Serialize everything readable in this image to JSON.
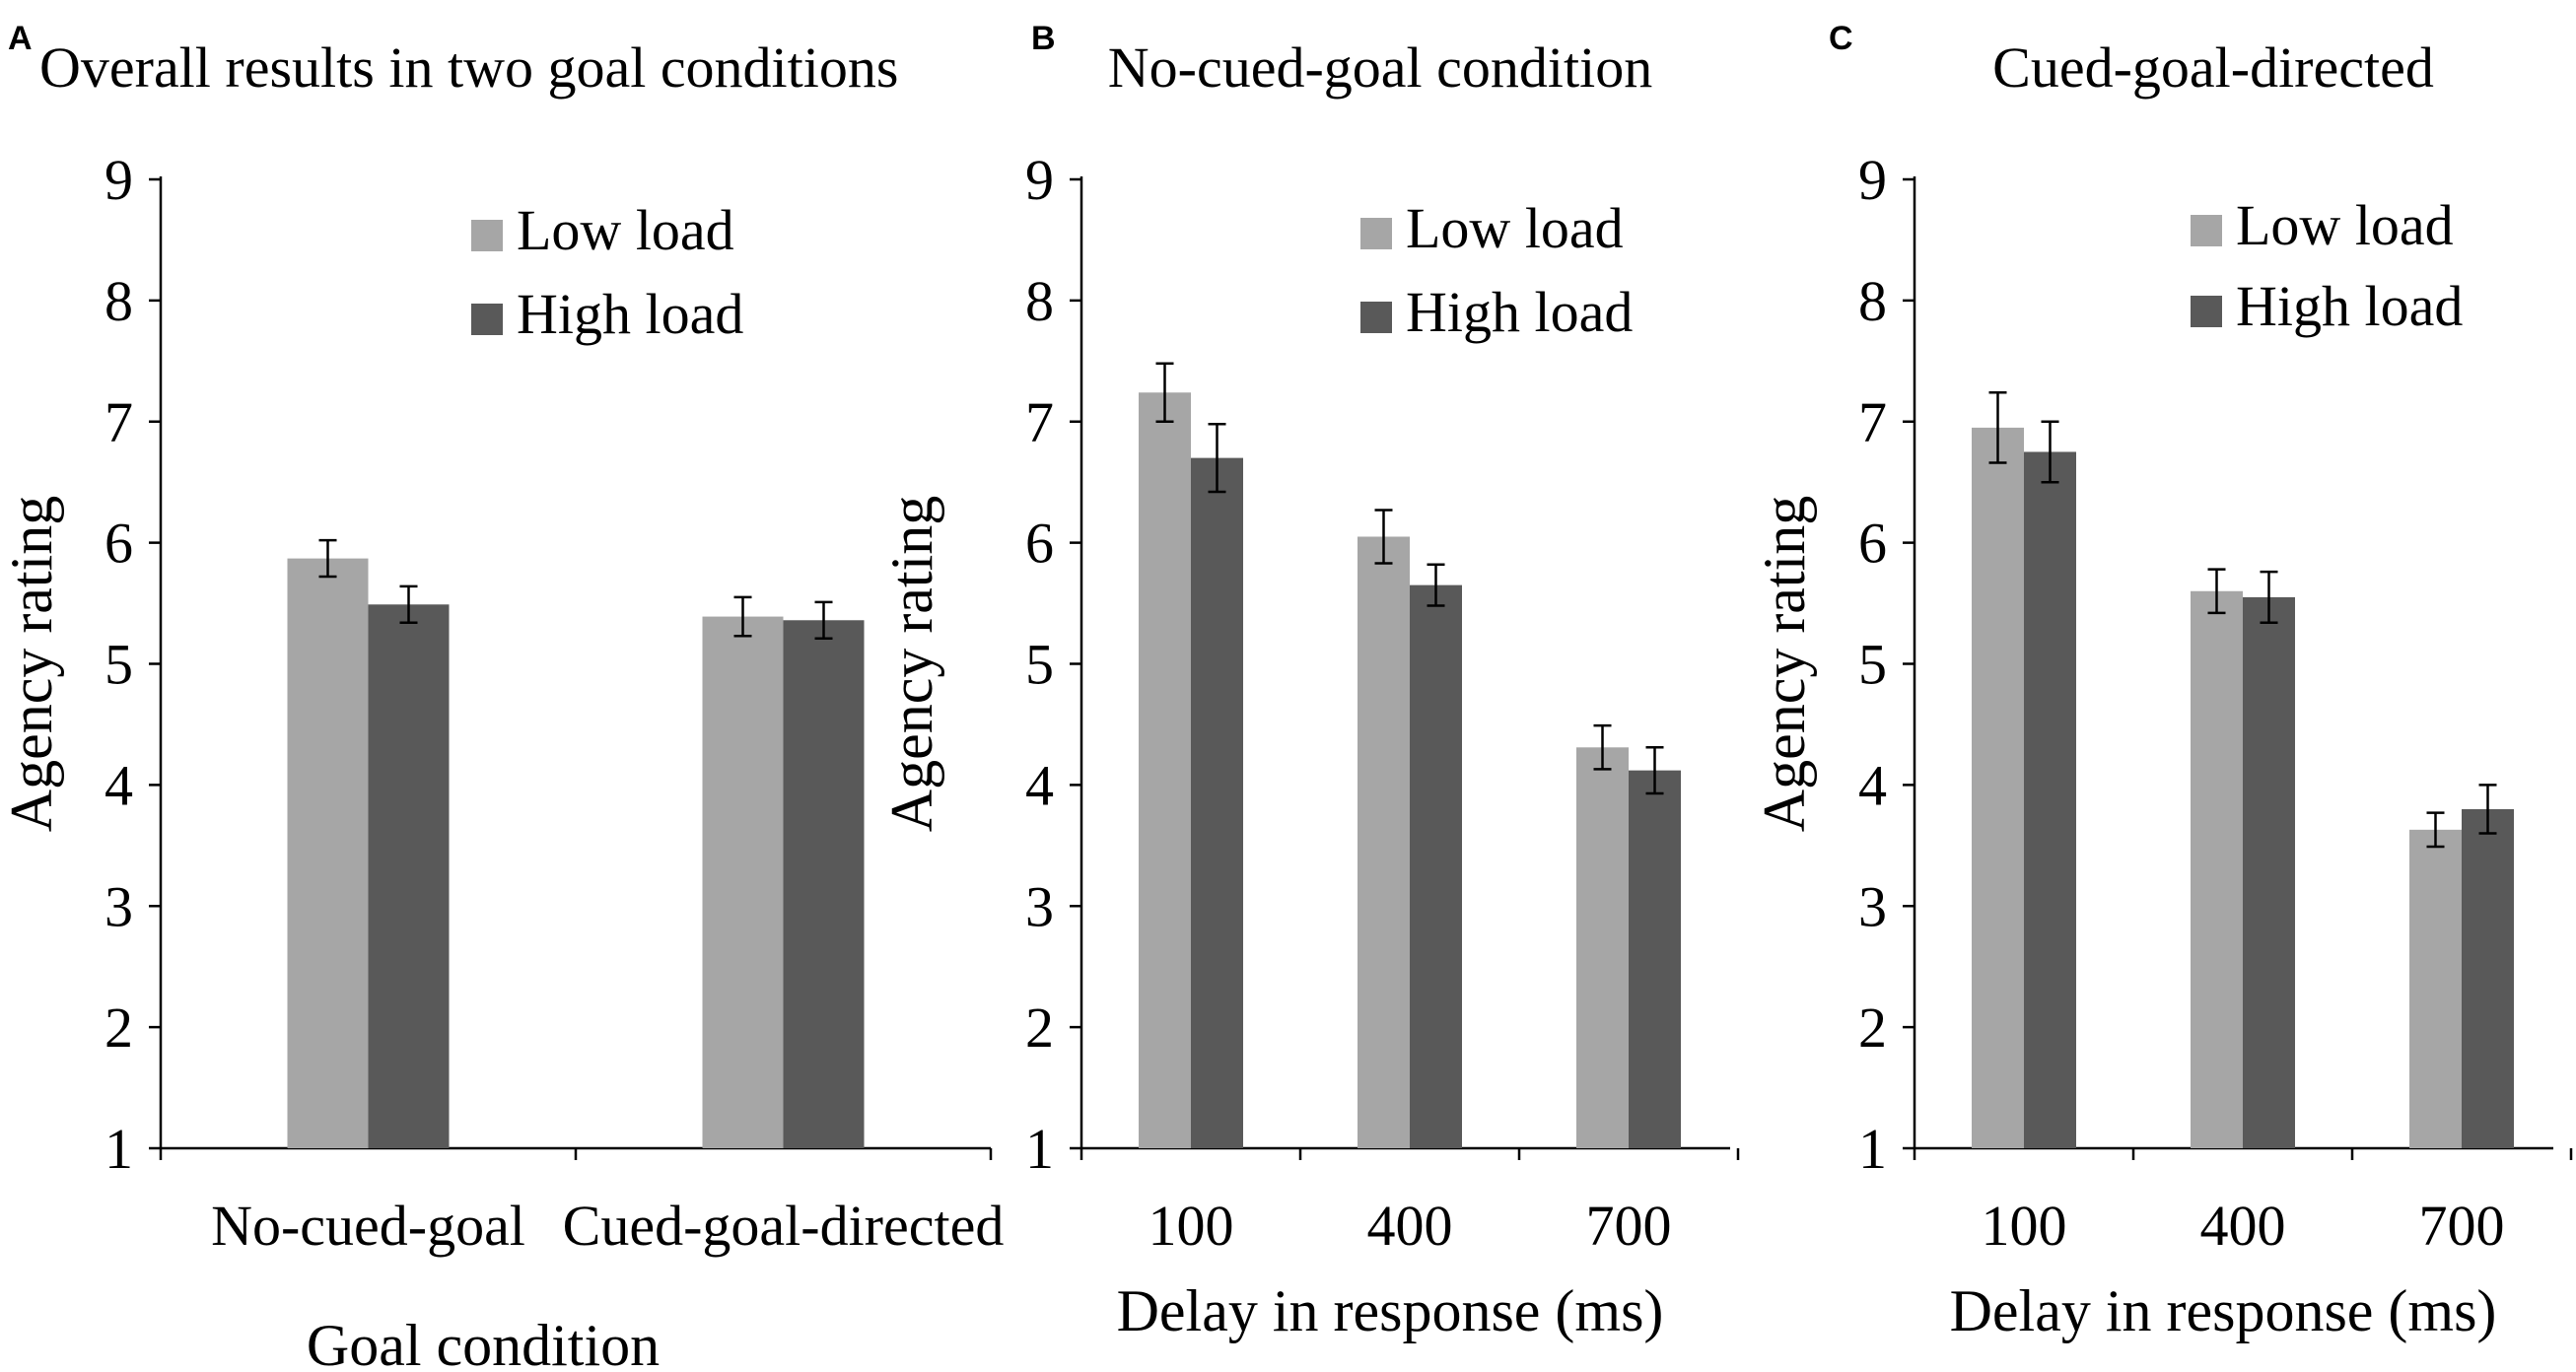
{
  "colors": {
    "low_load": "#a6a6a6",
    "high_load": "#595959",
    "axis": "#000000"
  },
  "chart_data": [
    {
      "type": "bar",
      "panel_label": "A",
      "title": "Overall results in two goal conditions",
      "xlabel": "Goal condition",
      "ylabel": "Agency rating",
      "ylim": [
        1,
        9
      ],
      "yticks": [
        "1",
        "2",
        "3",
        "4",
        "5",
        "6",
        "7",
        "8",
        "9"
      ],
      "grid": false,
      "legend_position": "top-right",
      "categories": [
        "No-cued-goal",
        "Cued-goal-directed"
      ],
      "series": [
        {
          "name": "Low load",
          "color_key": "low_load",
          "values": [
            5.87,
            5.39
          ],
          "error": [
            0.15,
            0.16
          ]
        },
        {
          "name": "High load",
          "color_key": "high_load",
          "values": [
            5.49,
            5.36
          ],
          "error": [
            0.15,
            0.15
          ]
        }
      ]
    },
    {
      "type": "bar",
      "panel_label": "B",
      "title": "No-cued-goal condition",
      "xlabel": "Delay in response (ms)",
      "ylabel": "Agency rating",
      "ylim": [
        1,
        9
      ],
      "yticks": [
        "1",
        "2",
        "3",
        "4",
        "5",
        "6",
        "7",
        "8",
        "9"
      ],
      "grid": false,
      "legend_position": "top-right",
      "categories": [
        "100",
        "400",
        "700"
      ],
      "series": [
        {
          "name": "Low load",
          "color_key": "low_load",
          "values": [
            7.24,
            6.05,
            4.31
          ],
          "error": [
            0.24,
            0.22,
            0.18
          ]
        },
        {
          "name": "High load",
          "color_key": "high_load",
          "values": [
            6.7,
            5.65,
            4.12
          ],
          "error": [
            0.28,
            0.17,
            0.19
          ]
        }
      ]
    },
    {
      "type": "bar",
      "panel_label": "C",
      "title": "Cued-goal-directed",
      "xlabel": "Delay in response (ms)",
      "ylabel": "Agency rating",
      "ylim": [
        1,
        9
      ],
      "yticks": [
        "1",
        "2",
        "3",
        "4",
        "5",
        "6",
        "7",
        "8",
        "9"
      ],
      "grid": false,
      "legend_position": "top-right",
      "categories": [
        "100",
        "400",
        "700"
      ],
      "series": [
        {
          "name": "Low load",
          "color_key": "low_load",
          "values": [
            6.95,
            5.6,
            3.63
          ],
          "error": [
            0.29,
            0.18,
            0.14
          ]
        },
        {
          "name": "High load",
          "color_key": "high_load",
          "values": [
            6.75,
            5.55,
            3.8
          ],
          "error": [
            0.25,
            0.21,
            0.2
          ]
        }
      ]
    }
  ]
}
